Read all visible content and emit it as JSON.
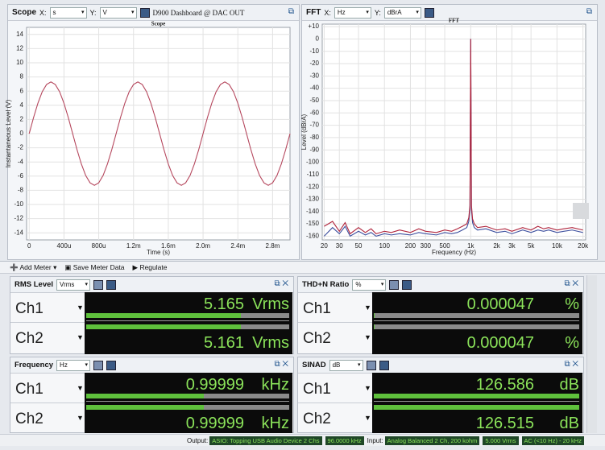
{
  "scope": {
    "title": "Scope",
    "x_label": "X:",
    "x_unit": "s",
    "y_label": "Y:",
    "y_unit": "V",
    "dashboard": "D900 Dashboard @ DAC OUT",
    "chart_data": {
      "type": "line",
      "title": "Scope",
      "x_axis_label": "Time (s)",
      "y_axis_label": "Instantaneous Level (V)",
      "x": [
        0,
        5e-05,
        0.0001,
        0.00015,
        0.0002,
        0.00025,
        0.0003,
        0.00035,
        0.0004,
        0.00045,
        0.0005,
        0.00055,
        0.0006,
        0.00065,
        0.0007,
        0.00075,
        0.0008,
        0.00085,
        0.0009,
        0.00095,
        0.001,
        0.00105,
        0.0011,
        0.00115,
        0.0012,
        0.00125,
        0.0013,
        0.00135,
        0.0014,
        0.00145,
        0.0015,
        0.00155,
        0.0016,
        0.00165,
        0.0017,
        0.00175,
        0.0018,
        0.00185,
        0.0019,
        0.00195,
        0.002,
        0.00205,
        0.0021,
        0.00215,
        0.0022,
        0.00225,
        0.0023,
        0.00235,
        0.0024,
        0.00245,
        0.0025,
        0.00255,
        0.0026,
        0.00265,
        0.0027,
        0.00275,
        0.0028,
        0.00285,
        0.0029,
        0.00295,
        0.003
      ],
      "series": [
        {
          "color": "#b5475d",
          "values": [
            0,
            2.26,
            4.29,
            5.91,
            6.94,
            7.3,
            6.94,
            5.91,
            4.29,
            2.26,
            0,
            -2.26,
            -4.29,
            -5.91,
            -6.94,
            -7.3,
            -6.94,
            -5.91,
            -4.29,
            -2.26,
            0,
            2.26,
            4.29,
            5.91,
            6.94,
            7.3,
            6.94,
            5.91,
            4.29,
            2.26,
            0,
            -2.26,
            -4.29,
            -5.91,
            -6.94,
            -7.3,
            -6.94,
            -5.91,
            -4.29,
            -2.26,
            0,
            2.26,
            4.29,
            5.91,
            6.94,
            7.3,
            6.94,
            5.91,
            4.29,
            2.26,
            0,
            -2.26,
            -4.29,
            -5.91,
            -6.94,
            -7.3,
            -6.94,
            -5.91,
            -4.29,
            -2.26,
            0
          ]
        }
      ],
      "xlim": [
        -3e-05,
        0.003
      ],
      "ylim": [
        -15,
        15
      ],
      "xticks": [
        0,
        {
          "value": 0.0004,
          "label": "400u"
        },
        {
          "value": 0.0008,
          "label": "800u"
        },
        {
          "value": 0.0012,
          "label": "1.2m"
        },
        {
          "value": 0.0016,
          "label": "1.6m"
        },
        {
          "value": 0.002,
          "label": "2.0m"
        },
        {
          "value": 0.0024,
          "label": "2.4m"
        },
        {
          "value": 0.0028,
          "label": "2.8m"
        }
      ],
      "yticks": [
        14,
        12,
        10,
        8,
        6,
        4,
        2,
        0,
        -2,
        -4,
        -6,
        -8,
        -10,
        -12,
        -14
      ],
      "grid": true,
      "log_x": false
    }
  },
  "fft": {
    "title": "FFT",
    "x_label": "X:",
    "x_unit": "Hz",
    "y_label": "Y:",
    "y_unit": "dBrA",
    "chart_data": {
      "type": "line",
      "title": "FFT",
      "x_axis_label": "Frequency (Hz)",
      "y_axis_label": "Level (dBrA)",
      "x": [
        20,
        25,
        30,
        35,
        40,
        50,
        60,
        70,
        80,
        100,
        120,
        150,
        200,
        250,
        300,
        400,
        500,
        600,
        700,
        800,
        900,
        950,
        980,
        1000,
        1020,
        1050,
        1100,
        1200,
        1500,
        2000,
        2500,
        3000,
        4000,
        5000,
        6000,
        7000,
        8000,
        10000,
        12000,
        15000,
        20000
      ],
      "series": [
        {
          "color": "#3d4f9e",
          "values": [
            -160,
            -153,
            -158,
            -152,
            -160,
            -156,
            -159,
            -157,
            -160,
            -158,
            -159,
            -158,
            -159,
            -157,
            -158,
            -159,
            -157,
            -158,
            -157,
            -155,
            -153,
            -148,
            -138,
            0,
            -138,
            -149,
            -153,
            -155,
            -154,
            -157,
            -156,
            -158,
            -155,
            -157,
            -155,
            -156,
            -155,
            -157,
            -156,
            -155,
            -157
          ]
        },
        {
          "color": "#b0243c",
          "values": [
            -152,
            -148,
            -156,
            -149,
            -158,
            -153,
            -157,
            -154,
            -158,
            -156,
            -157,
            -155,
            -157,
            -154,
            -156,
            -157,
            -155,
            -156,
            -154,
            -152,
            -150,
            -145,
            -135,
            0,
            -135,
            -146,
            -150,
            -153,
            -152,
            -155,
            -154,
            -156,
            -153,
            -155,
            -152,
            -154,
            -153,
            -155,
            -154,
            -153,
            -155
          ]
        }
      ],
      "xlim": [
        19,
        21500
      ],
      "ylim": [
        -163,
        12
      ],
      "xticks": [
        20,
        30,
        50,
        100,
        200,
        300,
        500,
        {
          "value": 1000,
          "label": "1k"
        },
        {
          "value": 2000,
          "label": "2k"
        },
        {
          "value": 3000,
          "label": "3k"
        },
        {
          "value": 5000,
          "label": "5k"
        },
        {
          "value": 10000,
          "label": "10k"
        },
        {
          "value": 20000,
          "label": "20k"
        }
      ],
      "yticks": [
        {
          "value": 10,
          "label": "+10"
        },
        0,
        -10,
        -20,
        -30,
        -40,
        -50,
        -60,
        -70,
        -80,
        -90,
        -100,
        -110,
        -120,
        -130,
        -140,
        -150,
        -160
      ],
      "grid": true,
      "log_x": true
    }
  },
  "toolbar": {
    "add_meter": "Add Meter",
    "save": "Save Meter Data",
    "regulate": "Regulate"
  },
  "meters": [
    {
      "title": "RMS Level",
      "unit": "Vrms",
      "channels": [
        {
          "name": "Ch1",
          "value": 5.165,
          "unit": "Vrms"
        },
        {
          "name": "Ch2",
          "value": 5.161,
          "unit": "Vrms"
        }
      ]
    },
    {
      "title": "THD+N Ratio",
      "unit": "%",
      "channels": [
        {
          "name": "Ch1",
          "value": 4.7e-05,
          "unit": "%"
        },
        {
          "name": "Ch2",
          "value": 4.7e-05,
          "unit": "%"
        }
      ]
    },
    {
      "title": "Frequency",
      "unit": "Hz",
      "channels": [
        {
          "name": "Ch1",
          "value": 0.99999,
          "unit": "kHz"
        },
        {
          "name": "Ch2",
          "value": 0.99999,
          "unit": "kHz"
        }
      ]
    },
    {
      "title": "SINAD",
      "unit": "dB",
      "channels": [
        {
          "name": "Ch1",
          "value": 126.586,
          "unit": "dB"
        },
        {
          "name": "Ch2",
          "value": 126.515,
          "unit": "dB"
        }
      ]
    }
  ],
  "status": {
    "output_label": "Output:",
    "output_device": "ASIO: Topping USB Audio Device 2 Chs",
    "output_rate": "96.0000 kHz",
    "input_label": "Input:",
    "input_device": "Analog Balanced 2 Ch, 200 kohm",
    "input_range": "5.000 Vrms",
    "input_filter": "AC (<10 Hz) - 20 kHz"
  }
}
